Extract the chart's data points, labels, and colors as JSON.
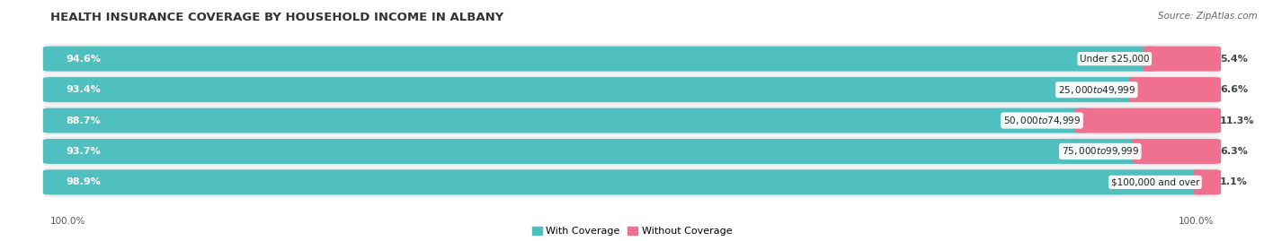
{
  "title": "HEALTH INSURANCE COVERAGE BY HOUSEHOLD INCOME IN ALBANY",
  "source": "Source: ZipAtlas.com",
  "categories": [
    "Under $25,000",
    "$25,000 to $49,999",
    "$50,000 to $74,999",
    "$75,000 to $99,999",
    "$100,000 and over"
  ],
  "with_coverage": [
    94.6,
    93.4,
    88.7,
    93.7,
    98.9
  ],
  "without_coverage": [
    5.4,
    6.6,
    11.3,
    6.3,
    1.1
  ],
  "color_coverage": "#50bfbf",
  "color_without": "#f07090",
  "row_bg_color": "#eeeeee",
  "label_color_coverage": "#ffffff",
  "label_color_without": "#444444",
  "category_bg": "#ffffff",
  "title_fontsize": 9.5,
  "source_fontsize": 7.5,
  "bar_label_fontsize": 8,
  "category_fontsize": 7.5,
  "legend_fontsize": 8,
  "footer_fontsize": 7.5,
  "figsize": [
    14.06,
    2.69
  ],
  "dpi": 100
}
